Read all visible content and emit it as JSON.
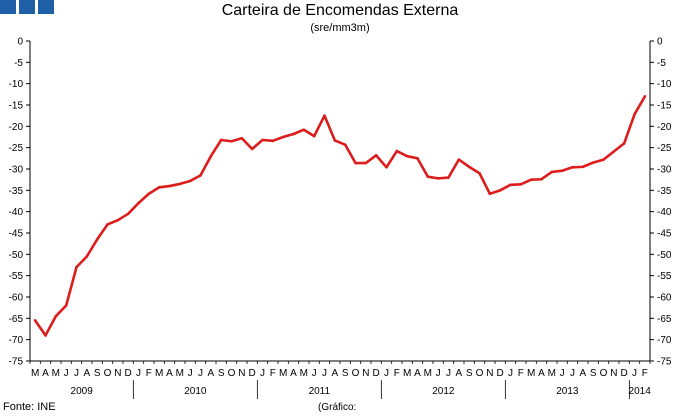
{
  "header": {
    "title": "Carteira de Encomendas Externa",
    "subtitle": "(sre/mm3m)"
  },
  "footer": {
    "source": "Fonte: INE",
    "note": "(Gráfico:"
  },
  "colors": {
    "line": "#dd1c1c",
    "logo": "#1f5fa8"
  },
  "logo_icon": "three-blue-squares",
  "chart_data": {
    "type": "line",
    "title": "Carteira de Encomendas Externa",
    "subtitle": "(sre/mm3m)",
    "ylim": [
      -75,
      0
    ],
    "yticks": [
      0,
      -5,
      -10,
      -15,
      -20,
      -25,
      -30,
      -35,
      -40,
      -45,
      -50,
      -55,
      -60,
      -65,
      -70,
      -75
    ],
    "grid": false,
    "legend": "none",
    "month_labels": [
      "M",
      "A",
      "M",
      "J",
      "J",
      "A",
      "S",
      "O",
      "N",
      "D",
      "J",
      "F",
      "M",
      "A",
      "M",
      "J",
      "J",
      "A",
      "S",
      "O",
      "N",
      "D",
      "J",
      "F",
      "M",
      "A",
      "M",
      "J",
      "J",
      "A",
      "S",
      "O",
      "N",
      "D",
      "J",
      "F",
      "M",
      "A",
      "M",
      "J",
      "J",
      "A",
      "S",
      "O",
      "N",
      "D",
      "J",
      "F",
      "M",
      "A",
      "M",
      "J",
      "J",
      "A",
      "S",
      "O",
      "N",
      "D",
      "J",
      "F"
    ],
    "year_labels": [
      "2009",
      "2010",
      "2011",
      "2012",
      "2013",
      "2014"
    ],
    "series": [
      {
        "values": [
          -65.5,
          -69,
          -64.5,
          -62,
          -53,
          -50.5,
          -46.5,
          -43,
          -42,
          -40.5,
          -38,
          -35.8,
          -34.3,
          -34,
          -33.5,
          -32.8,
          -31.5,
          -27,
          -23.2,
          -23.5,
          -22.8,
          -25.3,
          -23.2,
          -23.4,
          -22.5,
          -21.8,
          -20.8,
          -22.3,
          -17.5,
          -23.3,
          -24.3,
          -28.6,
          -28.6,
          -26.8,
          -29.6,
          -25.8,
          -27,
          -27.5,
          -31.8,
          -32.2,
          -32,
          -27.8,
          -29.5,
          -31,
          -35.8,
          -35,
          -33.7,
          -33.6,
          -32.5,
          -32.4,
          -30.7,
          -30.4,
          -29.6,
          -29.5,
          -28.5,
          -27.8,
          -25.9,
          -24,
          -17.2,
          -13
        ]
      }
    ]
  }
}
